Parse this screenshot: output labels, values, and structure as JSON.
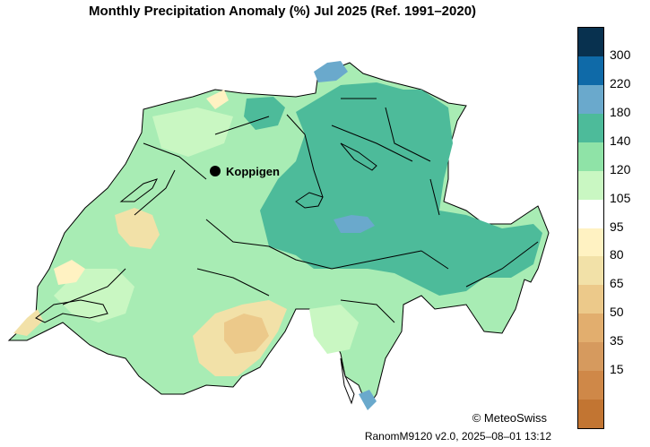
{
  "title": "Monthly Precipitation Anomaly (%) Jul 2025  (Ref. 1991–2020)",
  "map_label": "Koppigen",
  "credit": "© MeteoSwiss",
  "version": "RanomM9120 v2.0, 2025–08–01 13:12",
  "legend": {
    "colors": [
      "#08314f",
      "#0f6aa8",
      "#6aa9cc",
      "#4dbb9a",
      "#8fe3a7",
      "#c9f7c2",
      "#ffffff",
      "#fff2c2",
      "#f2e1a8",
      "#ecc98a",
      "#e2ae6e",
      "#d69a5e",
      "#cf8848",
      "#c27532"
    ],
    "labels": [
      "300",
      "220",
      "180",
      "140",
      "120",
      "105",
      "95",
      "80",
      "65",
      "50",
      "35",
      "15"
    ]
  },
  "colors": {
    "c140": "#4dbb9a",
    "c120": "#8fe3a7",
    "c105": "#c9f7c2",
    "c180": "#6aa9cc",
    "c80": "#fff2c2",
    "c65": "#f2e1a8",
    "c50": "#ecc98a"
  }
}
